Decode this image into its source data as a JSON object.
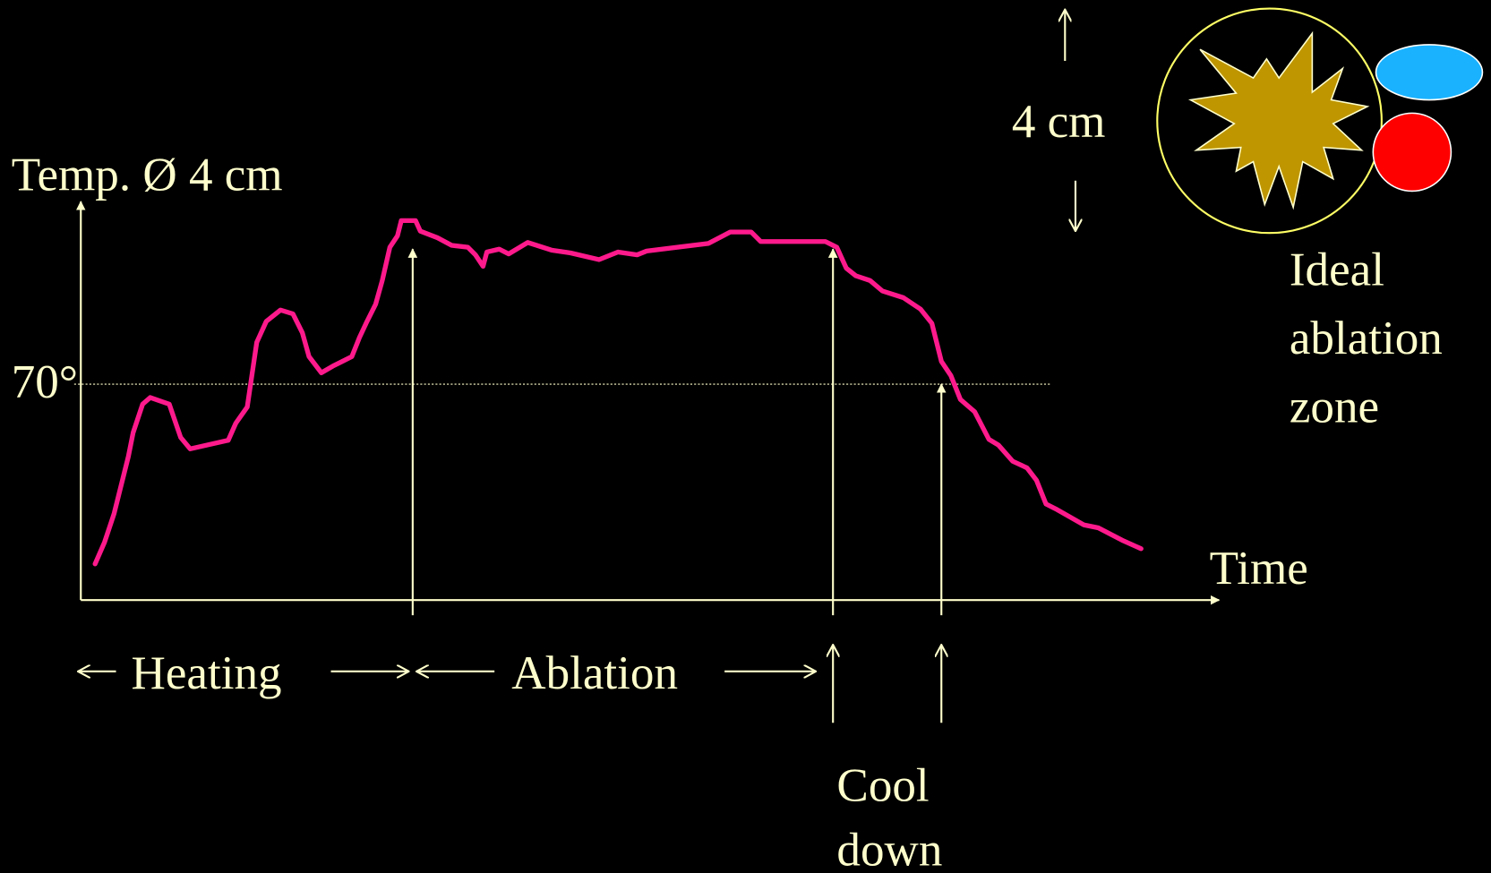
{
  "y_label": "Temp. Ø 4 cm",
  "threshold_label": "70°",
  "x_label": "Time",
  "phases": {
    "heating": "Heating",
    "ablation": "Ablation",
    "cool_down": [
      "Cool",
      "down"
    ]
  },
  "scale_label": "4 cm",
  "zone_label": [
    "Ideal",
    "ablation",
    "zone"
  ]
}
